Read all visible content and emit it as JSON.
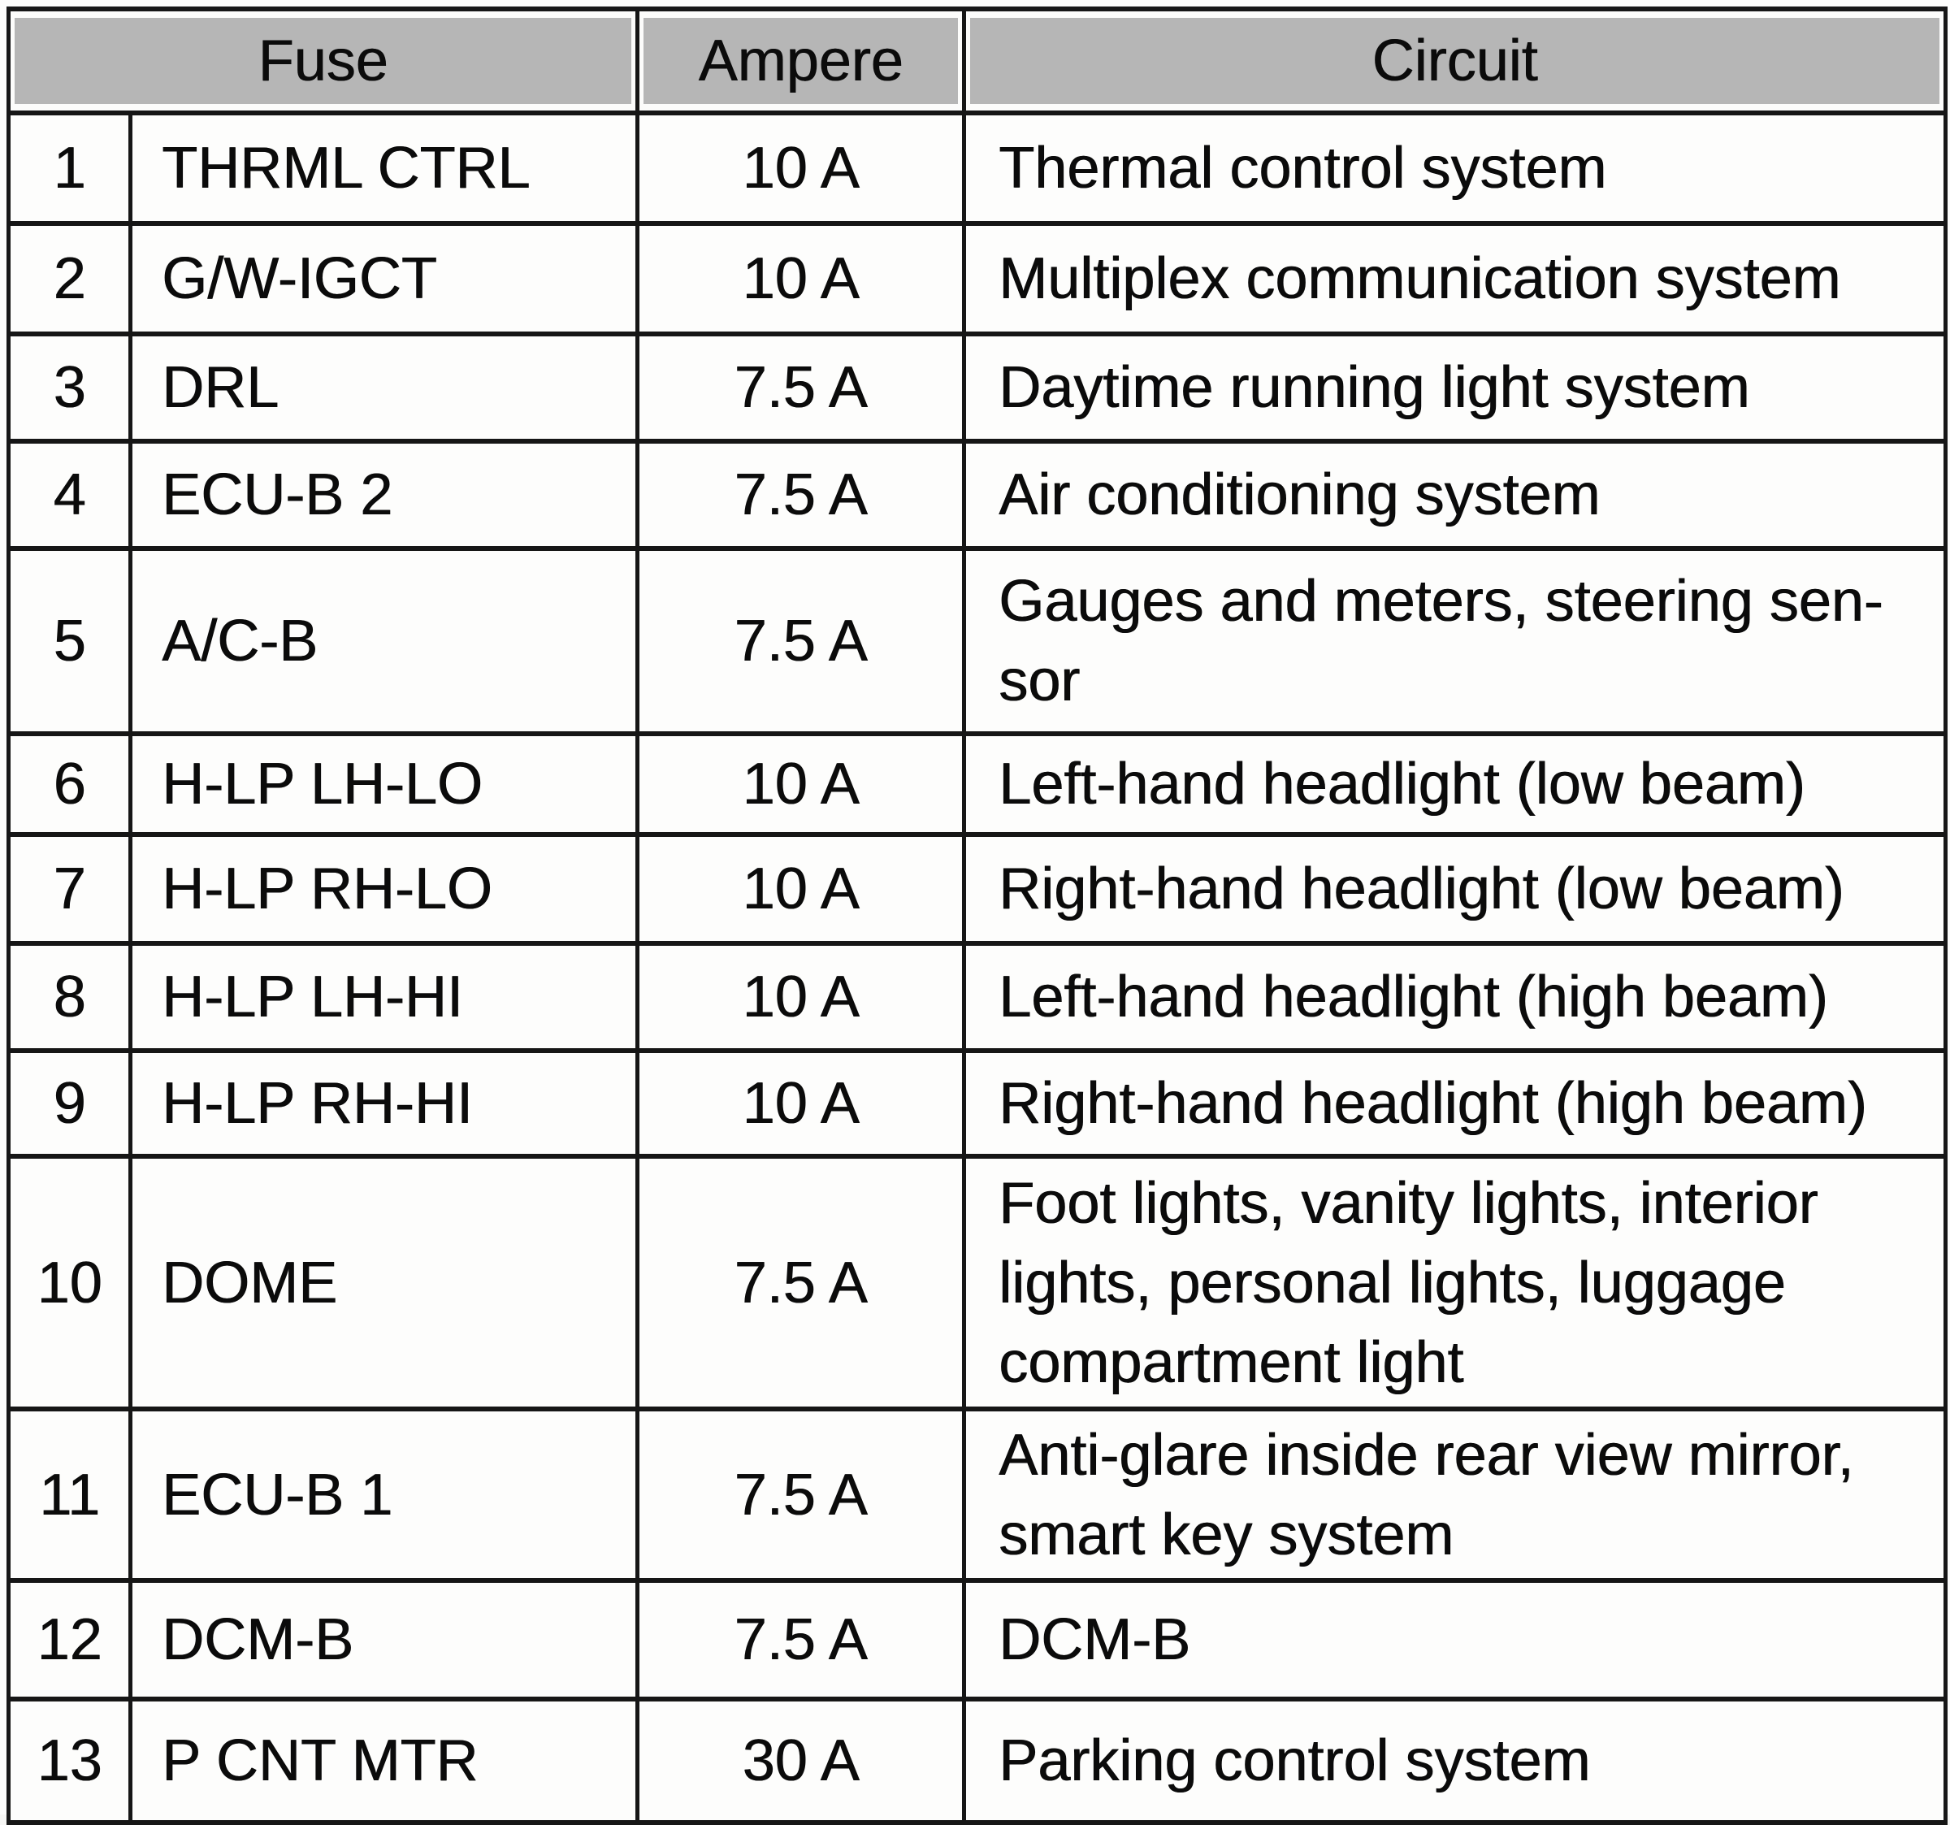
{
  "table": {
    "headers": {
      "fuse": "Fuse",
      "ampere": "Ampere",
      "circuit": "Circuit"
    },
    "rows": [
      {
        "num": "1",
        "fuse": "THRML CTRL",
        "ampere": "10 A",
        "circuit": "Thermal control system"
      },
      {
        "num": "2",
        "fuse": "G/W-IGCT",
        "ampere": "10 A",
        "circuit": "Multiplex communication system"
      },
      {
        "num": "3",
        "fuse": "DRL",
        "ampere": "7.5 A",
        "circuit": "Daytime running light system"
      },
      {
        "num": "4",
        "fuse": "ECU-B 2",
        "ampere": "7.5 A",
        "circuit": "Air conditioning system"
      },
      {
        "num": "5",
        "fuse": "A/C-B",
        "ampere": "7.5 A",
        "circuit": "Gauges and meters, steering sen-\nsor"
      },
      {
        "num": "6",
        "fuse": "H-LP LH-LO",
        "ampere": "10 A",
        "circuit": "Left-hand headlight (low beam)"
      },
      {
        "num": "7",
        "fuse": "H-LP RH-LO",
        "ampere": "10 A",
        "circuit": "Right-hand headlight (low beam)"
      },
      {
        "num": "8",
        "fuse": "H-LP LH-HI",
        "ampere": "10 A",
        "circuit": "Left-hand headlight (high beam)"
      },
      {
        "num": "9",
        "fuse": "H-LP RH-HI",
        "ampere": "10 A",
        "circuit": "Right-hand headlight (high beam)"
      },
      {
        "num": "10",
        "fuse": "DOME",
        "ampere": "7.5 A",
        "circuit": "Foot lights, vanity lights, interior\nlights, personal lights, luggage\ncompartment light"
      },
      {
        "num": "11",
        "fuse": "ECU-B 1",
        "ampere": "7.5 A",
        "circuit": "Anti-glare inside rear view mirror,\nsmart key system"
      },
      {
        "num": "12",
        "fuse": "DCM-B",
        "ampere": "7.5 A",
        "circuit": "DCM-B"
      },
      {
        "num": "13",
        "fuse": "P CNT MTR",
        "ampere": "30 A",
        "circuit": "Parking control system"
      }
    ],
    "colors": {
      "header_bg": "#b6b6b6",
      "border": "#161616",
      "page_bg": "#fcfcfb",
      "cell_bg": "#fdfdfc",
      "text": "#0b0b0b"
    }
  }
}
